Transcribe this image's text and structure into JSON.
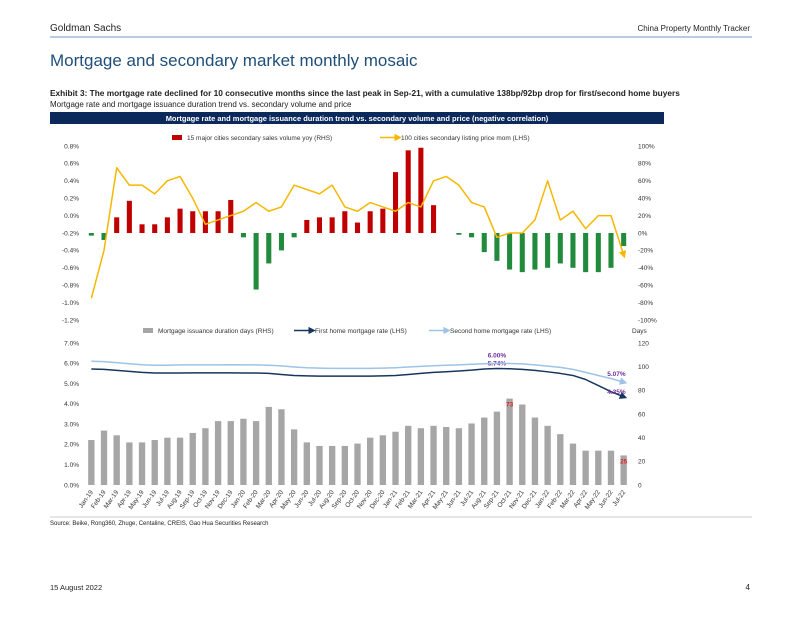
{
  "header": {
    "brand": "Goldman Sachs",
    "report": "China Property Monthly Tracker"
  },
  "title": "Mortgage and secondary market monthly mosaic",
  "exhibit": "Exhibit 3: The mortgage rate declined for 10 consecutive months since the last peak in Sep-21, with a cumulative 138bp/92bp drop for first/second home buyers",
  "subtitle": "Mortgage rate and mortgage issuance duration trend vs. secondary volume and price",
  "banner": "Mortgage rate and mortgage issuance duration trend vs. secondary volume and price (negative correlation)",
  "chart_data": [
    {
      "type": "bar-line",
      "grid": false,
      "ylim": [
        -1.2,
        0.8
      ],
      "yticks": [
        {
          "value": -1.2,
          "label": "-1.2%"
        },
        {
          "value": -1.0,
          "label": "-1.0%"
        },
        {
          "value": -0.8,
          "label": "-0.8%"
        },
        {
          "value": -0.6,
          "label": "-0.6%"
        },
        {
          "value": -0.4,
          "label": "-0.4%"
        },
        {
          "value": -0.2,
          "label": "-0.2%"
        },
        {
          "value": 0.0,
          "label": "0.0%"
        },
        {
          "value": 0.2,
          "label": "0.2%"
        },
        {
          "value": 0.4,
          "label": "0.4%"
        },
        {
          "value": 0.6,
          "label": "0.6%"
        },
        {
          "value": 0.8,
          "label": "0.8%"
        }
      ],
      "y2lim": [
        -100,
        100
      ],
      "y2ticks": [
        {
          "value": -100,
          "label": "-100%"
        },
        {
          "value": -80,
          "label": "-80%"
        },
        {
          "value": -60,
          "label": "-60%"
        },
        {
          "value": -40,
          "label": "-40%"
        },
        {
          "value": -20,
          "label": "-20%"
        },
        {
          "value": 0,
          "label": "0%"
        },
        {
          "value": 20,
          "label": "20%"
        },
        {
          "value": 40,
          "label": "40%"
        },
        {
          "value": 60,
          "label": "60%"
        },
        {
          "value": 80,
          "label": "80%"
        },
        {
          "value": 100,
          "label": "100%"
        }
      ],
      "series": [
        {
          "name": "15 major cities secondary sales volume yoy (RHS)",
          "type": "bar",
          "axis": "y2",
          "color": "#c00000",
          "negative_color": "#218a3c",
          "values": [
            -3,
            -8,
            18,
            37,
            10,
            10,
            18,
            28,
            25,
            25,
            25,
            38,
            -5,
            -65,
            -35,
            -20,
            -5,
            15,
            18,
            18,
            25,
            12,
            25,
            28,
            70,
            95,
            98,
            32,
            0,
            -2,
            -5,
            -22,
            -32,
            -42,
            -45,
            -42,
            -40,
            -35,
            -40,
            -45,
            -45,
            -40,
            -15
          ]
        },
        {
          "name": "100 cities secondary listing price mom (LHS)",
          "type": "line",
          "axis": "y",
          "color": "#f5b800",
          "arrow": true,
          "values": [
            -0.95,
            -0.4,
            0.55,
            0.35,
            0.35,
            0.25,
            0.4,
            0.45,
            0.2,
            -0.1,
            -0.05,
            0.0,
            0.05,
            0.15,
            0.05,
            0.1,
            0.35,
            0.3,
            0.25,
            0.35,
            0.1,
            0.05,
            0.15,
            0.1,
            0.05,
            0.15,
            0.1,
            0.4,
            0.45,
            0.35,
            0.15,
            0.1,
            -0.25,
            -0.2,
            -0.2,
            -0.05,
            0.4,
            -0.05,
            0.05,
            -0.15,
            0.0,
            0.0,
            -0.45
          ]
        }
      ]
    },
    {
      "type": "bar-line",
      "grid": false,
      "categories": [
        "Jan-19",
        "Feb-19",
        "Mar-19",
        "Apr-19",
        "May-19",
        "Jun-19",
        "Jul-19",
        "Aug-19",
        "Sep-19",
        "Oct-19",
        "Nov-19",
        "Dec-19",
        "Jan-20",
        "Feb-20",
        "Mar-20",
        "Apr-20",
        "May-20",
        "Jun-20",
        "Jul-20",
        "Aug-20",
        "Sep-20",
        "Oct-20",
        "Nov-20",
        "Dec-20",
        "Jan-21",
        "Feb-21",
        "Mar-21",
        "Apr-21",
        "May-21",
        "Jun-21",
        "Jul-21",
        "Aug-21",
        "Sep-21",
        "Oct-21",
        "Nov-21",
        "Dec-21",
        "Jan-22",
        "Feb-22",
        "Mar-22",
        "Apr-22",
        "May-22",
        "Jun-22",
        "Jul-22"
      ],
      "ylim": [
        0,
        7
      ],
      "yticks": [
        {
          "value": 0,
          "label": "0.0%"
        },
        {
          "value": 1,
          "label": "1.0%"
        },
        {
          "value": 2,
          "label": "2.0%"
        },
        {
          "value": 3,
          "label": "3.0%"
        },
        {
          "value": 4,
          "label": "4.0%"
        },
        {
          "value": 5,
          "label": "5.0%"
        },
        {
          "value": 6,
          "label": "6.0%"
        },
        {
          "value": 7,
          "label": "7.0%"
        }
      ],
      "y2lim": [
        0,
        120
      ],
      "y2ticks": [
        0,
        20,
        40,
        60,
        80,
        100,
        120
      ],
      "y2_label": "Days",
      "series": [
        {
          "name": "Mortgage issuance duration days (RHS)",
          "type": "bar",
          "axis": "y2",
          "color": "#a6a6a6",
          "label_color": "#e02020",
          "values": [
            38,
            46,
            42,
            36,
            36,
            38,
            40,
            40,
            44,
            48,
            54,
            54,
            56,
            54,
            66,
            64,
            47,
            36,
            33,
            33,
            33,
            35,
            40,
            42,
            45,
            50,
            48,
            50,
            49,
            48,
            52,
            57,
            62,
            73,
            68,
            57,
            50,
            43,
            35,
            29,
            29,
            29,
            25
          ],
          "value_labels": [
            null,
            null,
            null,
            null,
            null,
            null,
            null,
            null,
            null,
            null,
            null,
            null,
            null,
            null,
            null,
            null,
            null,
            null,
            null,
            null,
            null,
            null,
            null,
            null,
            null,
            null,
            null,
            null,
            null,
            null,
            null,
            null,
            null,
            "73",
            null,
            null,
            null,
            null,
            null,
            null,
            null,
            null,
            "25"
          ]
        },
        {
          "name": "First home mortgage rate (LHS)",
          "type": "line",
          "axis": "y",
          "color": "#17365d",
          "arrow": true,
          "label_color": "#7030a0",
          "values": [
            5.72,
            5.7,
            5.65,
            5.6,
            5.55,
            5.52,
            5.52,
            5.52,
            5.53,
            5.53,
            5.53,
            5.53,
            5.52,
            5.52,
            5.5,
            5.45,
            5.4,
            5.38,
            5.37,
            5.37,
            5.37,
            5.37,
            5.37,
            5.38,
            5.4,
            5.45,
            5.5,
            5.55,
            5.58,
            5.62,
            5.66,
            5.72,
            5.74,
            5.73,
            5.7,
            5.65,
            5.58,
            5.5,
            5.4,
            5.2,
            4.9,
            4.6,
            4.35
          ],
          "value_labels": [
            null,
            null,
            null,
            null,
            null,
            null,
            null,
            null,
            null,
            null,
            null,
            null,
            null,
            null,
            null,
            null,
            null,
            null,
            null,
            null,
            null,
            null,
            null,
            null,
            null,
            null,
            null,
            null,
            null,
            null,
            null,
            null,
            "5.74%",
            null,
            null,
            null,
            null,
            null,
            null,
            null,
            null,
            null,
            "4.35%"
          ]
        },
        {
          "name": "Second home mortgage rate (LHS)",
          "type": "line",
          "axis": "y",
          "color": "#9dc3e6",
          "arrow": true,
          "label_color": "#7030a0",
          "values": [
            6.1,
            6.08,
            6.03,
            5.98,
            5.93,
            5.9,
            5.9,
            5.92,
            5.92,
            5.92,
            5.92,
            5.93,
            5.92,
            5.92,
            5.9,
            5.87,
            5.82,
            5.78,
            5.76,
            5.75,
            5.75,
            5.75,
            5.75,
            5.76,
            5.78,
            5.82,
            5.85,
            5.88,
            5.9,
            5.92,
            5.95,
            5.98,
            6.0,
            5.99,
            5.97,
            5.92,
            5.86,
            5.8,
            5.7,
            5.55,
            5.4,
            5.25,
            5.07
          ],
          "value_labels": [
            null,
            null,
            null,
            null,
            null,
            null,
            null,
            null,
            null,
            null,
            null,
            null,
            null,
            null,
            null,
            null,
            null,
            null,
            null,
            null,
            null,
            null,
            null,
            null,
            null,
            null,
            null,
            null,
            null,
            null,
            null,
            null,
            "6.00%",
            null,
            null,
            null,
            null,
            null,
            null,
            null,
            null,
            null,
            "5.07%"
          ]
        }
      ]
    }
  ],
  "source": "Source: Beike, Rong360, Zhuge, Centaline, CREIS, Gao Hua Securities Research",
  "footer": {
    "date": "15 August 2022",
    "page": "4"
  }
}
